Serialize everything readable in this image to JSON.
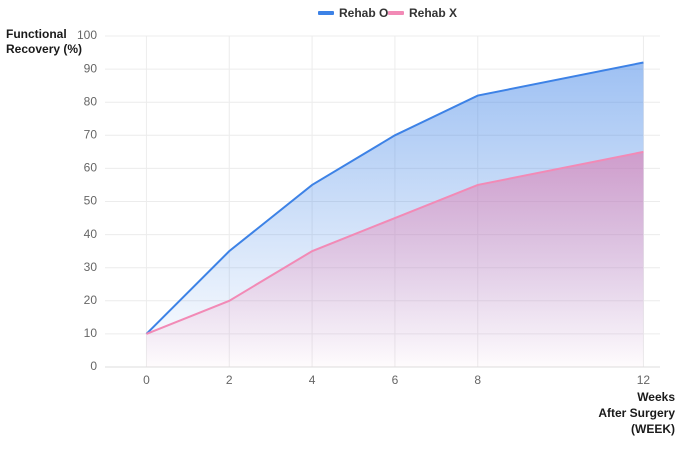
{
  "chart_data": {
    "type": "area",
    "y_label": [
      "Functional",
      "Recovery (%)"
    ],
    "x_label": [
      "Weeks",
      "After Surgery",
      "(WEEK)"
    ],
    "x": [
      0,
      2,
      4,
      6,
      8,
      12
    ],
    "series": [
      {
        "name": "Rehab O",
        "color": "#3d82e6",
        "values": [
          10,
          35,
          55,
          70,
          82,
          92
        ]
      },
      {
        "name": "Rehab X",
        "color": "#f28ab6",
        "values": [
          10,
          20,
          35,
          45,
          55,
          65
        ]
      }
    ],
    "xlim": [
      -1,
      12.4
    ],
    "ylim": [
      0,
      100
    ],
    "xticks": [
      0,
      2,
      4,
      6,
      8,
      12
    ],
    "yticks": [
      0,
      10,
      20,
      30,
      40,
      50,
      60,
      70,
      80,
      90,
      100
    ],
    "grid": true,
    "legend": "top"
  }
}
